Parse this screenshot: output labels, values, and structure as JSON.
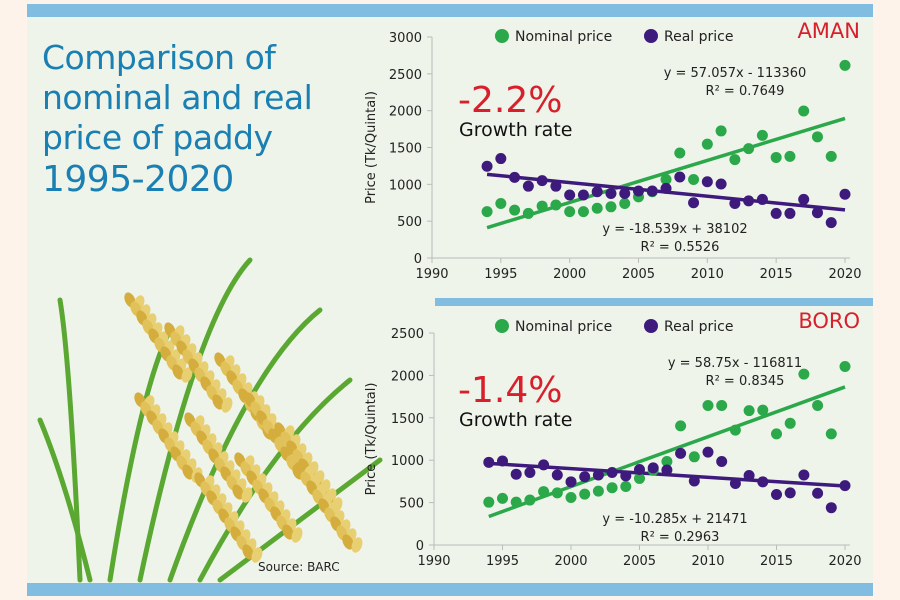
{
  "title_lines": [
    "Comparison of",
    "nominal and real",
    "price of paddy",
    "1995-2020"
  ],
  "source": "Source: BARC",
  "colors": {
    "nominal": "#2aa84a",
    "real": "#3d1a7c",
    "accent_red": "#d8202c",
    "title_blue": "#1a7fb2",
    "bar_blue": "#80bde0"
  },
  "chart_data": [
    {
      "type": "scatter",
      "title": "AMAN",
      "ylabel": "Price (Tk/Quintal)",
      "xlabel": "",
      "xlim": [
        1990,
        2020
      ],
      "ylim": [
        0,
        3000
      ],
      "xticks": [
        1990,
        1995,
        2000,
        2005,
        2010,
        2015,
        2020
      ],
      "yticks": [
        0,
        500,
        1000,
        1500,
        2000,
        2500,
        3000
      ],
      "legend": "top",
      "growth_value": "-2.2%",
      "growth_label": "Growth rate",
      "x": [
        1994,
        1995,
        1996,
        1997,
        1998,
        1999,
        2000,
        2001,
        2002,
        2003,
        2004,
        2005,
        2006,
        2007,
        2008,
        2009,
        2010,
        2011,
        2012,
        2013,
        2014,
        2015,
        2016,
        2017,
        2018,
        2019,
        2020
      ],
      "series": [
        {
          "name": "Nominal price",
          "color": "#2aa84a",
          "values": [
            630,
            740,
            650,
            605,
            705,
            720,
            630,
            630,
            675,
            695,
            740,
            830,
            900,
            1065,
            1425,
            1065,
            1545,
            1725,
            1335,
            1485,
            1665,
            1365,
            1380,
            1995,
            1645,
            1380,
            2615
          ],
          "trend": {
            "slope": 57.057,
            "intercept": -113360,
            "equation": "y = 57.057x - 113360",
            "r2": "R² = 0.7649"
          }
        },
        {
          "name": "Real price",
          "color": "#3d1a7c",
          "values": [
            1245,
            1350,
            1095,
            975,
            1050,
            975,
            855,
            855,
            900,
            875,
            875,
            910,
            910,
            945,
            1100,
            750,
            1035,
            1005,
            740,
            775,
            795,
            605,
            605,
            795,
            615,
            480,
            865
          ],
          "trend": {
            "slope": -18.539,
            "intercept": 38102,
            "equation": "y = -18.539x + 38102",
            "r2": "R² = 0.5526"
          }
        }
      ]
    },
    {
      "type": "scatter",
      "title": "BORO",
      "ylabel": "Price (Tk/Quintal)",
      "xlabel": "",
      "xlim": [
        1990,
        2020
      ],
      "ylim": [
        0,
        2500
      ],
      "xticks": [
        1990,
        1995,
        2000,
        2005,
        2010,
        2015,
        2020
      ],
      "yticks": [
        0,
        500,
        1000,
        1500,
        2000,
        2500
      ],
      "legend": "top",
      "growth_value": "-1.4%",
      "growth_label": "Growth rate",
      "x": [
        1994,
        1995,
        1996,
        1997,
        1998,
        1999,
        2000,
        2001,
        2002,
        2003,
        2004,
        2005,
        2006,
        2007,
        2008,
        2009,
        2010,
        2011,
        2012,
        2013,
        2014,
        2015,
        2016,
        2017,
        2018,
        2019,
        2020
      ],
      "series": [
        {
          "name": "Nominal price",
          "color": "#2aa84a",
          "values": [
            505,
            550,
            505,
            530,
            630,
            615,
            560,
            600,
            635,
            675,
            690,
            785,
            880,
            985,
            1405,
            1040,
            1645,
            1645,
            1355,
            1585,
            1590,
            1310,
            1435,
            2015,
            1645,
            1310,
            2105
          ],
          "trend": {
            "slope": 58.75,
            "intercept": -116811,
            "equation": "y = 58.75x - 116811",
            "r2": "R² = 0.8345"
          }
        },
        {
          "name": "Real price",
          "color": "#3d1a7c",
          "values": [
            975,
            990,
            835,
            855,
            945,
            825,
            745,
            805,
            825,
            855,
            815,
            890,
            910,
            885,
            1080,
            755,
            1095,
            985,
            725,
            820,
            745,
            595,
            615,
            825,
            610,
            440,
            700
          ],
          "trend": {
            "slope": -10.285,
            "intercept": 21471,
            "equation": "y = -10.285x + 21471",
            "r2": "R² = 0.2963"
          }
        }
      ]
    }
  ]
}
